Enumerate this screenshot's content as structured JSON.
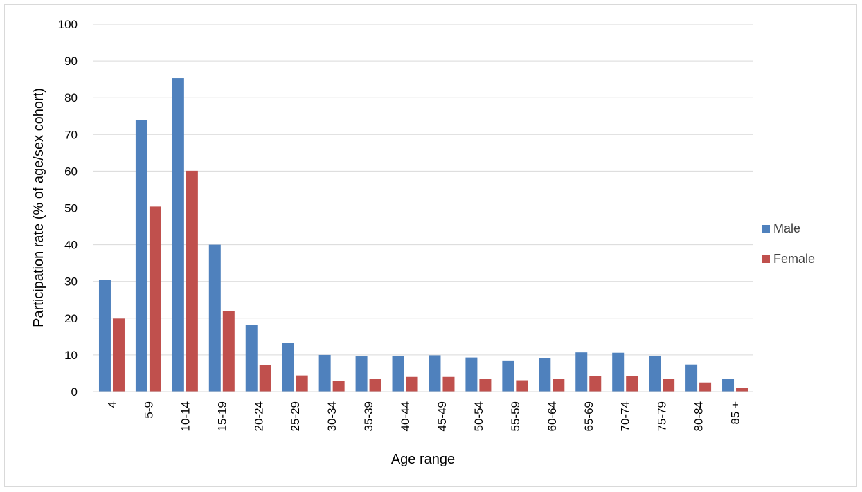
{
  "chart_data": {
    "type": "bar",
    "title": "",
    "xlabel": "Age range",
    "ylabel": "Participation rate (% of age/sex cohort)",
    "ylim": [
      0,
      100
    ],
    "yticks": [
      0,
      10,
      20,
      30,
      40,
      50,
      60,
      70,
      80,
      90,
      100
    ],
    "grid": true,
    "legend_position": "right",
    "categories": [
      "4",
      "5-9",
      "10-14",
      "15-19",
      "20-24",
      "25-29",
      "30-34",
      "35-39",
      "40-44",
      "45-49",
      "50-54",
      "55-59",
      "60-64",
      "65-69",
      "70-74",
      "75-79",
      "80-84",
      "85 +"
    ],
    "series": [
      {
        "name": "Male",
        "color": "#4f81bd",
        "values": [
          30.5,
          74,
          85.3,
          40,
          18.2,
          13.3,
          10,
          9.6,
          9.7,
          9.9,
          9.3,
          8.5,
          9.1,
          10.7,
          10.6,
          9.8,
          7.4,
          3.4
        ]
      },
      {
        "name": "Female",
        "color": "#c0504d",
        "values": [
          19.9,
          50.4,
          60.1,
          22,
          7.3,
          4.4,
          2.9,
          3.4,
          4.0,
          4.0,
          3.4,
          3.1,
          3.4,
          4.2,
          4.3,
          3.4,
          2.5,
          1.1
        ]
      }
    ]
  }
}
